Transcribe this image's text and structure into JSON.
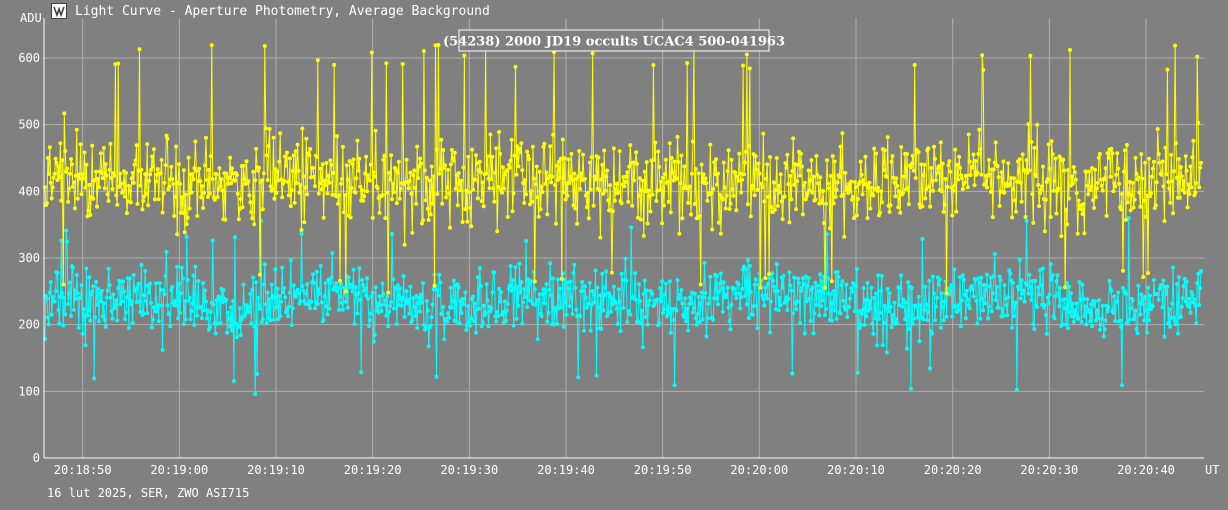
{
  "window": {
    "title": "Light Curve - Aperture Photometry, Average Background",
    "icon": "light-curve-app-icon"
  },
  "footer": {
    "text": "16 lut 2025, SER, ZWO ASI715"
  },
  "colors": {
    "background": "#808080",
    "grid": "#b0b0b0",
    "target": "#ffff00",
    "comparison": "#00ffff"
  },
  "chart_data": {
    "type": "line",
    "title": "(54238) 2000 JD19 occults UCAC4 500-041963",
    "ylabel": "ADU",
    "xlabel": "UT",
    "ylim": [
      0,
      660
    ],
    "xlim": [
      "20:18:46",
      "20:20:46"
    ],
    "yticks": [
      0,
      100,
      200,
      300,
      400,
      500,
      600
    ],
    "xticks": [
      "20:18:50",
      "20:19:00",
      "20:19:10",
      "20:19:20",
      "20:19:30",
      "20:19:40",
      "20:19:50",
      "20:20:00",
      "20:20:10",
      "20:20:20",
      "20:20:30",
      "20:20:40"
    ],
    "grid": true,
    "legend": "none",
    "series": [
      {
        "color": "#ffff00",
        "note_on_values": "dense noisy signal, approx. 1200 samples",
        "mean": 415,
        "spread": 55,
        "min": 245,
        "max": 620
      },
      {
        "color": "#00ffff",
        "note_on_values": "dense noisy signal, approx. 1200 samples",
        "mean": 235,
        "spread": 42,
        "min": 95,
        "max": 360
      }
    ]
  }
}
